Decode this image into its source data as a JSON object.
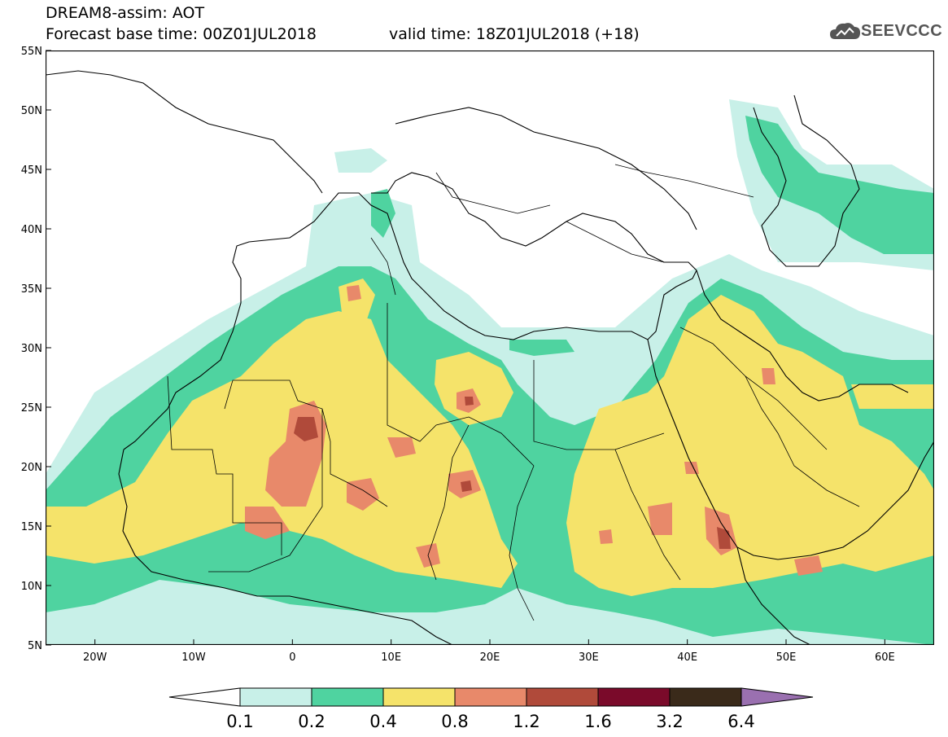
{
  "header": {
    "title": "DREAM8-assim: AOT",
    "base_time": "Forecast base time: 00Z01JUL2018",
    "valid_time": "valid time: 18Z01JUL2018 (+18)",
    "logo_text": "SEEVCCC",
    "logo_icon": "cloud-icon"
  },
  "map": {
    "lon_range": [
      -25,
      65
    ],
    "lat_range": [
      5,
      55
    ],
    "lon_ticks": [
      "20W",
      "10W",
      "0",
      "10E",
      "20E",
      "30E",
      "40E",
      "50E",
      "60E"
    ],
    "lon_tick_values": [
      -20,
      -10,
      0,
      10,
      20,
      30,
      40,
      50,
      60
    ],
    "lat_ticks": [
      "55N",
      "50N",
      "45N",
      "40N",
      "35N",
      "30N",
      "25N",
      "20N",
      "15N",
      "10N",
      "5N"
    ],
    "lat_tick_values": [
      55,
      50,
      45,
      40,
      35,
      30,
      25,
      20,
      15,
      10,
      5
    ]
  },
  "colorbar": {
    "labels": [
      "0.1",
      "0.2",
      "0.4",
      "0.8",
      "1.2",
      "1.6",
      "3.2",
      "6.4"
    ],
    "colors": [
      "#c8f0e8",
      "#4fd3a0",
      "#f5e36a",
      "#e8896a",
      "#b04a3a",
      "#7a0a2a",
      "#3a2a1a"
    ],
    "under_color": "#ffffff",
    "over_color": "#9a70b0"
  }
}
